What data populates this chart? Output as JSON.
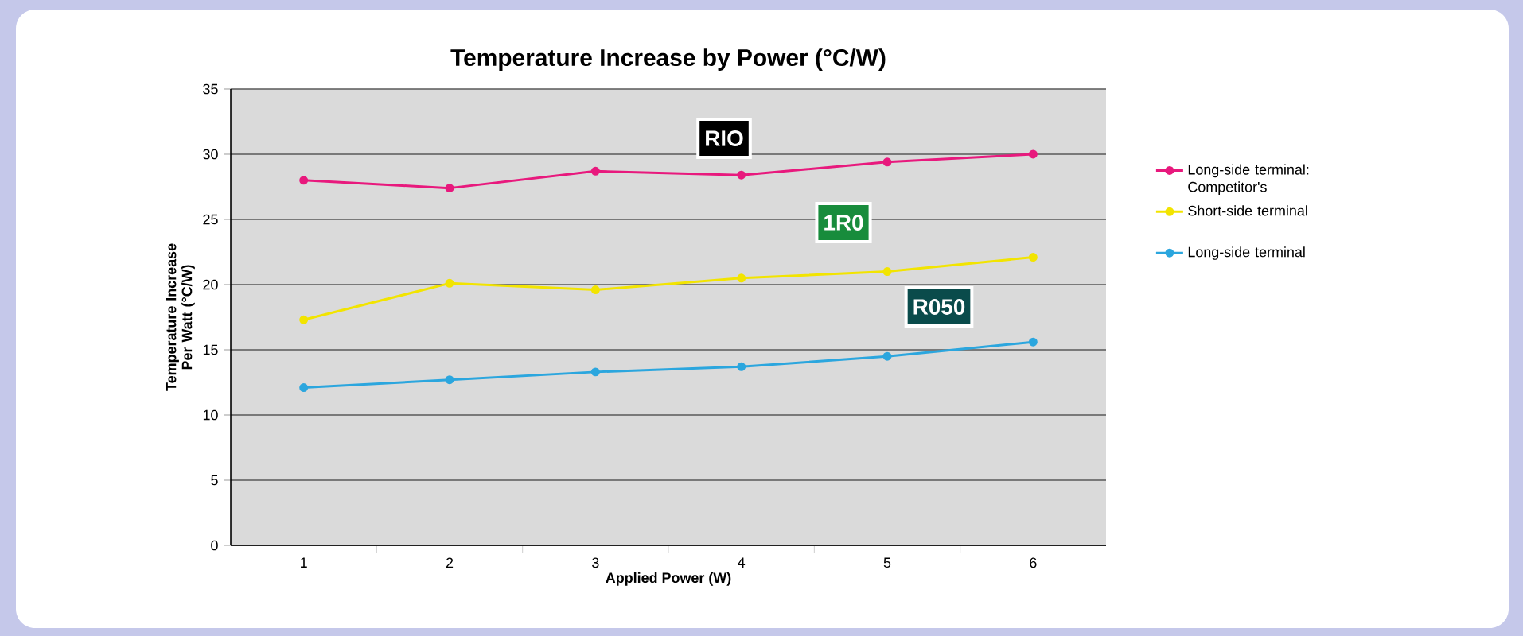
{
  "chart_data": {
    "type": "line",
    "title": "Temperature Increase by Power (°C/W)",
    "xlabel": "Applied Power (W)",
    "ylabel": "Temperature Increase Per Watt (°C/W)",
    "categories": [
      "1",
      "2",
      "3",
      "4",
      "5",
      "6"
    ],
    "series": [
      {
        "name": "Long-side terminal: Competitor's",
        "color": "#e8197d",
        "values": [
          28.0,
          27.4,
          28.7,
          28.4,
          29.4,
          30.0
        ]
      },
      {
        "name": "Short-side terminal",
        "color": "#f2e400",
        "values": [
          17.3,
          20.1,
          19.6,
          20.5,
          21.0,
          22.1
        ]
      },
      {
        "name": "Long-side terminal",
        "color": "#2ba6de",
        "values": [
          12.1,
          12.7,
          13.3,
          13.7,
          14.5,
          15.6
        ]
      }
    ],
    "annotations": [
      "RIO",
      "1R0",
      "R050"
    ],
    "ylim": [
      0,
      35
    ],
    "yticks": [
      0,
      5,
      10,
      15,
      20,
      25,
      30,
      35
    ],
    "grid": "y",
    "legend": "right",
    "marker": "circle",
    "line_style": "solid"
  }
}
